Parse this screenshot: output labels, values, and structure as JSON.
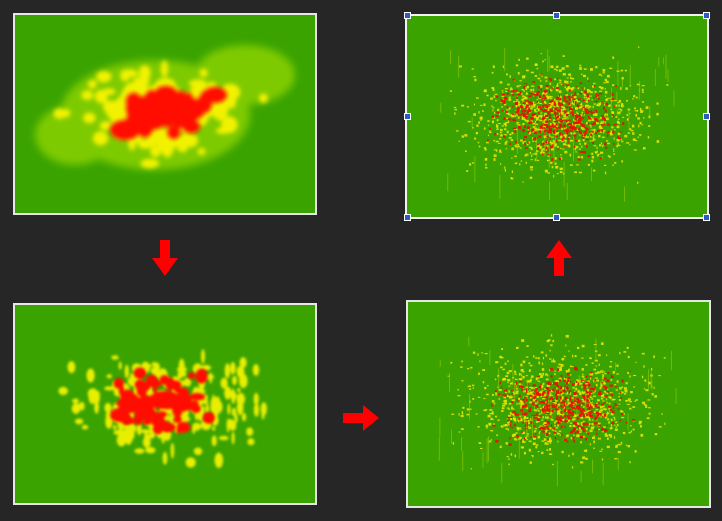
{
  "canvas": {
    "background": "#262626"
  },
  "panels": [
    {
      "id": "heatmap-blurred",
      "base_color": "#3aa300",
      "hot_color": "#ff0000",
      "warm_color": "#ffff00"
    },
    {
      "id": "heatmap-fine-selected",
      "base_color": "#3aa300",
      "hot_color": "#ff0000",
      "warm_color": "#ffff00",
      "selected": true
    },
    {
      "id": "heatmap-medium",
      "base_color": "#3aa300",
      "hot_color": "#ff0000",
      "warm_color": "#ffff00"
    },
    {
      "id": "heatmap-fine",
      "base_color": "#3aa300",
      "hot_color": "#ff0000",
      "warm_color": "#ffff00"
    }
  ],
  "arrows": {
    "color": "#ff0000",
    "items": [
      {
        "id": "arrow-down",
        "direction": "down"
      },
      {
        "id": "arrow-right",
        "direction": "right"
      },
      {
        "id": "arrow-up",
        "direction": "up"
      }
    ]
  },
  "selection_handles": {
    "color": "#2b5cc4",
    "count": 8
  }
}
